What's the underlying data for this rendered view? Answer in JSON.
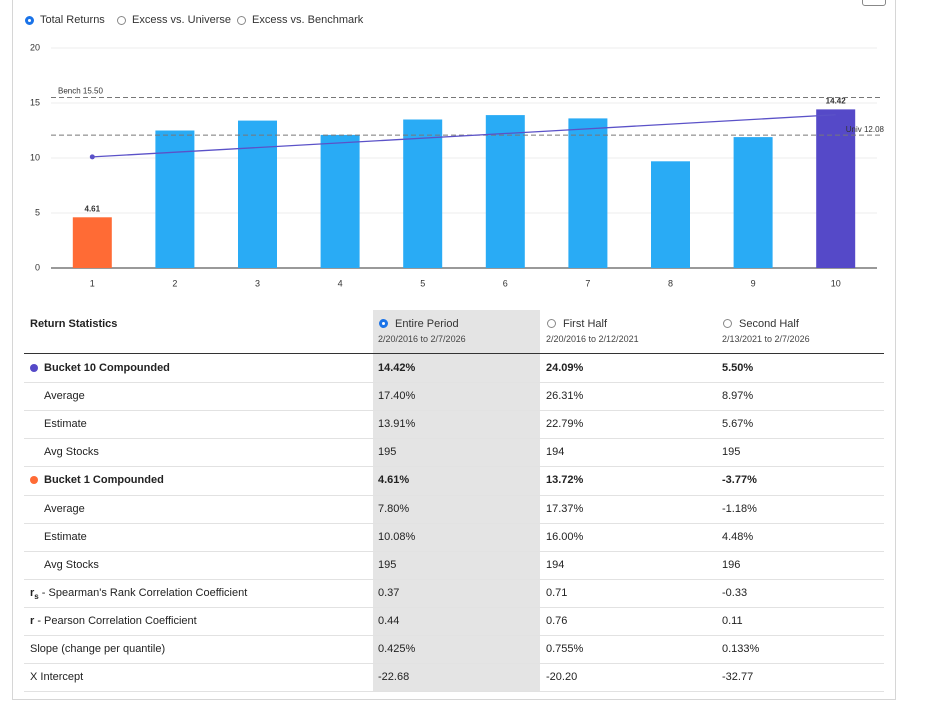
{
  "options": [
    {
      "label": "Total Returns",
      "selected": true
    },
    {
      "label": "Excess vs. Universe",
      "selected": false
    },
    {
      "label": "Excess vs. Benchmark",
      "selected": false
    }
  ],
  "chart_data": {
    "type": "bar",
    "categories": [
      "1",
      "2",
      "3",
      "4",
      "5",
      "6",
      "7",
      "8",
      "9",
      "10"
    ],
    "values": [
      4.61,
      12.5,
      13.4,
      12.1,
      13.5,
      13.9,
      13.6,
      9.7,
      11.9,
      14.42
    ],
    "value_labels": [
      "4.61",
      null,
      null,
      null,
      null,
      null,
      null,
      null,
      null,
      "14.42"
    ],
    "colors": [
      "#ff6b35",
      "#29abf5",
      "#29abf5",
      "#29abf5",
      "#29abf5",
      "#29abf5",
      "#29abf5",
      "#29abf5",
      "#29abf5",
      "#5549c8"
    ],
    "ylim": [
      0,
      20
    ],
    "yticks": [
      0,
      5,
      10,
      15,
      20
    ],
    "grid": true,
    "reference_lines": [
      {
        "label": "Bench 15.50",
        "value": 15.5
      },
      {
        "label": "Univ 12.08",
        "value": 12.08
      }
    ],
    "trend": {
      "color": "#5b52c8",
      "x": [
        1,
        10
      ],
      "values": [
        10.1,
        13.93
      ]
    }
  },
  "table": {
    "title": "Return Statistics",
    "columns": [
      {
        "title": "Entire Period",
        "range": "2/20/2016 to 2/7/2026",
        "selected": true
      },
      {
        "title": "First Half",
        "range": "2/20/2016 to 2/12/2021",
        "selected": false
      },
      {
        "title": "Second Half",
        "range": "2/13/2021 to 2/7/2026",
        "selected": false
      }
    ],
    "rows": [
      {
        "label": "Bucket 10 Compounded",
        "bold": true,
        "dot": "#5549c8",
        "cells": [
          "14.42%",
          "24.09%",
          "5.50%"
        ]
      },
      {
        "label": "Average",
        "indent": true,
        "cells": [
          "17.40%",
          "26.31%",
          "8.97%"
        ]
      },
      {
        "label": "Estimate",
        "indent": true,
        "cells": [
          "13.91%",
          "22.79%",
          "5.67%"
        ]
      },
      {
        "label": "Avg Stocks",
        "indent": true,
        "cells": [
          "195",
          "194",
          "195"
        ]
      },
      {
        "label": "Bucket 1 Compounded",
        "bold": true,
        "dot": "#ff6b35",
        "cells": [
          "4.61%",
          "13.72%",
          "-3.77%"
        ]
      },
      {
        "label": "Average",
        "indent": true,
        "cells": [
          "7.80%",
          "17.37%",
          "-1.18%"
        ]
      },
      {
        "label": "Estimate",
        "indent": true,
        "cells": [
          "10.08%",
          "16.00%",
          "4.48%"
        ]
      },
      {
        "label": "Avg Stocks",
        "indent": true,
        "cells": [
          "195",
          "194",
          "196"
        ]
      },
      {
        "symbol": "r",
        "symbol_sub": "s",
        "label": " - Spearman's Rank Correlation Coefficient",
        "cells": [
          "0.37",
          "0.71",
          "-0.33"
        ]
      },
      {
        "symbol": "r",
        "label": " - Pearson Correlation Coefficient",
        "cells": [
          "0.44",
          "0.76",
          "0.11"
        ]
      },
      {
        "label": "Slope (change per quantile)",
        "cells": [
          "0.425%",
          "0.755%",
          "0.133%"
        ]
      },
      {
        "label": "X Intercept",
        "cells": [
          "-22.68",
          "-20.20",
          "-32.77"
        ]
      }
    ]
  }
}
